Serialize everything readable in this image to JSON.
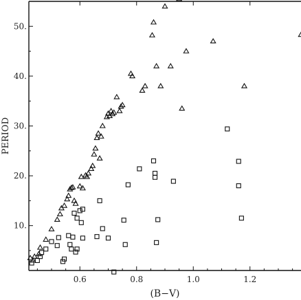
{
  "chart_data": {
    "type": "scatter",
    "xlabel": "(B−V)",
    "ylabel": "PERIOD",
    "xlim": [
      0.42,
      1.38
    ],
    "ylim": [
      1,
      55
    ],
    "x_ticks": [
      0.6,
      0.8,
      1.0,
      1.2
    ],
    "x_tick_labels": [
      "0.6",
      "0.8",
      "1.0",
      "1.2"
    ],
    "y_ticks": [
      10,
      20,
      30,
      40,
      50
    ],
    "y_tick_labels": [
      "10.",
      "20.",
      "30.",
      "40.",
      "50."
    ],
    "grid": false,
    "series": [
      {
        "marker": "triangle",
        "points": [
          [
            0.425,
            3.5
          ],
          [
            0.435,
            3.0
          ],
          [
            0.44,
            3.8
          ],
          [
            0.455,
            4.3
          ],
          [
            0.46,
            5.6
          ],
          [
            0.48,
            7.2
          ],
          [
            0.5,
            9.3
          ],
          [
            0.52,
            11.2
          ],
          [
            0.53,
            12.3
          ],
          [
            0.535,
            13.5
          ],
          [
            0.545,
            14.0
          ],
          [
            0.555,
            15.3
          ],
          [
            0.56,
            16.0
          ],
          [
            0.565,
            17.3
          ],
          [
            0.57,
            17.6
          ],
          [
            0.575,
            17.7
          ],
          [
            0.58,
            15.0
          ],
          [
            0.585,
            14.4
          ],
          [
            0.6,
            17.9
          ],
          [
            0.605,
            19.8
          ],
          [
            0.61,
            17.5
          ],
          [
            0.62,
            20.1
          ],
          [
            0.625,
            19.8
          ],
          [
            0.63,
            20.5
          ],
          [
            0.64,
            21.4
          ],
          [
            0.645,
            22.0
          ],
          [
            0.65,
            24.3
          ],
          [
            0.655,
            25.5
          ],
          [
            0.66,
            27.6
          ],
          [
            0.665,
            28.5
          ],
          [
            0.67,
            23.5
          ],
          [
            0.675,
            27.9
          ],
          [
            0.68,
            30.0
          ],
          [
            0.695,
            31.8
          ],
          [
            0.7,
            32.5
          ],
          [
            0.705,
            32.0
          ],
          [
            0.71,
            33.0
          ],
          [
            0.715,
            32.4
          ],
          [
            0.72,
            32.7
          ],
          [
            0.73,
            35.8
          ],
          [
            0.74,
            33.0
          ],
          [
            0.745,
            33.9
          ],
          [
            0.75,
            34.2
          ],
          [
            0.78,
            40.5
          ],
          [
            0.785,
            40.0
          ],
          [
            0.82,
            37.1
          ],
          [
            0.83,
            38.0
          ],
          [
            0.86,
            50.8
          ],
          [
            0.855,
            48.2
          ],
          [
            0.87,
            42.0
          ],
          [
            0.885,
            38.0
          ],
          [
            0.9,
            54.0
          ],
          [
            0.92,
            42.0
          ],
          [
            0.95,
            55.5
          ],
          [
            0.96,
            33.5
          ],
          [
            0.975,
            45.0
          ],
          [
            1.07,
            47.0
          ],
          [
            1.18,
            38.0
          ],
          [
            1.38,
            48.3
          ]
        ]
      },
      {
        "marker": "square",
        "points": [
          [
            0.43,
            2.5
          ],
          [
            0.45,
            3.0
          ],
          [
            0.46,
            3.8
          ],
          [
            0.465,
            4.6
          ],
          [
            0.48,
            5.3
          ],
          [
            0.5,
            6.8
          ],
          [
            0.52,
            6.0
          ],
          [
            0.525,
            7.6
          ],
          [
            0.54,
            2.8
          ],
          [
            0.545,
            3.3
          ],
          [
            0.56,
            8.0
          ],
          [
            0.565,
            6.2
          ],
          [
            0.57,
            5.3
          ],
          [
            0.575,
            7.7
          ],
          [
            0.58,
            12.5
          ],
          [
            0.585,
            4.7
          ],
          [
            0.59,
            5.3
          ],
          [
            0.59,
            11.5
          ],
          [
            0.6,
            13.0
          ],
          [
            0.605,
            10.6
          ],
          [
            0.61,
            13.3
          ],
          [
            0.61,
            7.5
          ],
          [
            0.66,
            7.8
          ],
          [
            0.67,
            15.0
          ],
          [
            0.68,
            9.4
          ],
          [
            0.7,
            7.5
          ],
          [
            0.72,
            0.7
          ],
          [
            0.755,
            11.1
          ],
          [
            0.76,
            6.2
          ],
          [
            0.77,
            18.2
          ],
          [
            0.81,
            21.4
          ],
          [
            0.86,
            23.0
          ],
          [
            0.865,
            20.5
          ],
          [
            0.865,
            19.7
          ],
          [
            0.87,
            6.6
          ],
          [
            0.875,
            11.2
          ],
          [
            0.93,
            18.9
          ],
          [
            1.12,
            29.4
          ],
          [
            1.16,
            22.9
          ],
          [
            1.16,
            18.0
          ],
          [
            1.17,
            11.5
          ]
        ]
      }
    ]
  }
}
